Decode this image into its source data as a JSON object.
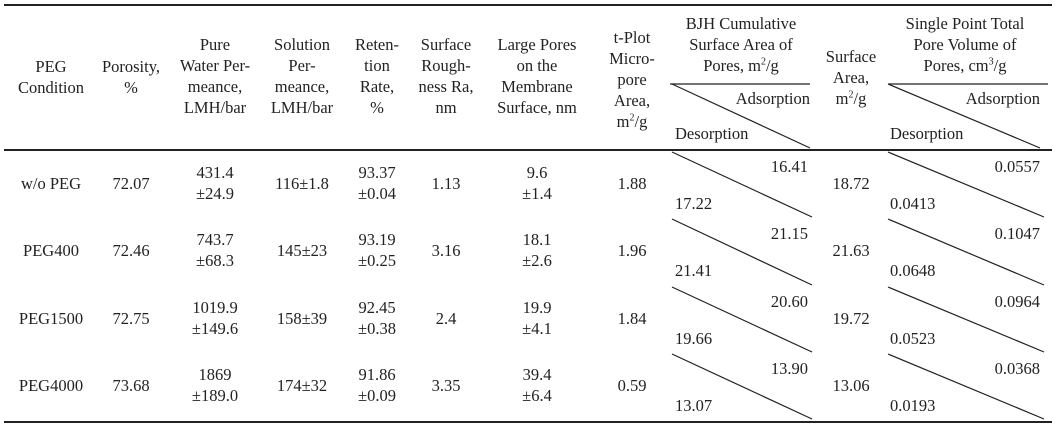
{
  "header": {
    "peg": [
      "PEG",
      "Condition"
    ],
    "porosity": [
      "Porosity,",
      "%"
    ],
    "pwp": [
      "Pure",
      "Water Per-",
      "meance,",
      "LMH/bar"
    ],
    "sp": [
      "Solution",
      "Per-",
      "meance,",
      "LMH/bar"
    ],
    "ret": [
      "Reten-",
      "tion",
      "Rate,",
      "%"
    ],
    "rough": [
      "Surface",
      "Rough-",
      "ness Ra,",
      "nm"
    ],
    "pores": [
      "Large Pores",
      "on the",
      "Membrane",
      "Surface, nm"
    ],
    "tplot": [
      "t-Plot",
      "Micro-",
      "pore",
      "Area,",
      "m²/g"
    ],
    "bjh": [
      "BJH Cumulative",
      "Surface Area of",
      "Pores, m²/g"
    ],
    "sa": [
      "Surface",
      "Area,",
      "m²/g"
    ],
    "spv": [
      "Single Point Total",
      "Pore Volume of",
      "Pores, cm³/g"
    ],
    "adsorption": "Adsorption",
    "desorption": "Desorption"
  },
  "rows": [
    {
      "peg": "w/o PEG",
      "porosity": "72.07",
      "pwp": [
        "431.4",
        "±24.9"
      ],
      "sp": "116±1.8",
      "ret": [
        "93.37",
        "±0.04"
      ],
      "rough": "1.13",
      "pores": [
        "9.6",
        "±1.4"
      ],
      "tplot": "1.88",
      "bjh_ads": "16.41",
      "bjh_des": "17.22",
      "sa": "18.72",
      "spv_ads": "0.0557",
      "spv_des": "0.0413"
    },
    {
      "peg": "PEG400",
      "porosity": "72.46",
      "pwp": [
        "743.7",
        "±68.3"
      ],
      "sp": "145±23",
      "ret": [
        "93.19",
        "±0.25"
      ],
      "rough": "3.16",
      "pores": [
        "18.1",
        "±2.6"
      ],
      "tplot": "1.96",
      "bjh_ads": "21.15",
      "bjh_des": "21.41",
      "sa": "21.63",
      "spv_ads": "0.1047",
      "spv_des": "0.0648"
    },
    {
      "peg": "PEG1500",
      "porosity": "72.75",
      "pwp": [
        "1019.9",
        "±149.6"
      ],
      "sp": "158±39",
      "ret": [
        "92.45",
        "±0.38"
      ],
      "rough": "2.4",
      "pores": [
        "19.9",
        "±4.1"
      ],
      "tplot": "1.84",
      "bjh_ads": "20.60",
      "bjh_des": "19.66",
      "sa": "19.72",
      "spv_ads": "0.0964",
      "spv_des": "0.0523"
    },
    {
      "peg": "PEG4000",
      "porosity": "73.68",
      "pwp": [
        "1869",
        "±189.0"
      ],
      "sp": "174±32",
      "ret": [
        "91.86",
        "±0.09"
      ],
      "rough": "3.35",
      "pores": [
        "39.4",
        "±6.4"
      ],
      "tplot": "0.59",
      "bjh_ads": "13.90",
      "bjh_des": "13.07",
      "sa": "13.06",
      "spv_ads": "0.0368",
      "spv_des": "0.0193"
    }
  ]
}
